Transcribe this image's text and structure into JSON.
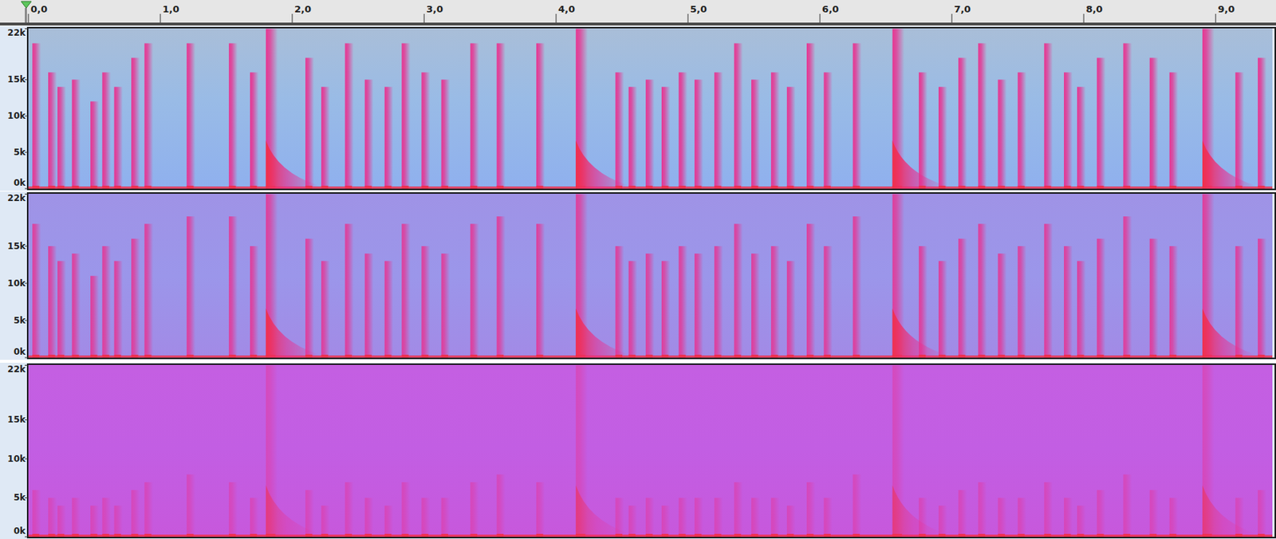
{
  "chart_data": [
    {
      "type": "spectrogram",
      "xlim": [
        0,
        9.43
      ],
      "xticks": [
        {
          "value": 0,
          "label": "0,0"
        },
        {
          "value": 1,
          "label": "1,0"
        },
        {
          "value": 2,
          "label": "2,0"
        },
        {
          "value": 3,
          "label": "3,0"
        },
        {
          "value": 4,
          "label": "4,0"
        },
        {
          "value": 5,
          "label": "5,0"
        },
        {
          "value": 6,
          "label": "6,0"
        },
        {
          "value": 7,
          "label": "7,0"
        },
        {
          "value": 8,
          "label": "8,0"
        },
        {
          "value": 9,
          "label": "9,0"
        }
      ],
      "ylim": [
        0,
        22050
      ],
      "yticks": [
        {
          "value": 0,
          "label": "0k"
        },
        {
          "value": 5000,
          "label": "5k"
        },
        {
          "value": 10000,
          "label": "10k"
        },
        {
          "value": 15000,
          "label": "15k"
        },
        {
          "value": 22000,
          "label": "22k"
        }
      ],
      "x": [
        0.03,
        0.15,
        0.22,
        0.33,
        0.47,
        0.56,
        0.65,
        0.78,
        0.88,
        1.2,
        1.52,
        1.68,
        1.8,
        2.1,
        2.22,
        2.4,
        2.55,
        2.7,
        2.83,
        2.98,
        3.13,
        3.35,
        3.55,
        3.85,
        4.15,
        4.45,
        4.55,
        4.68,
        4.8,
        4.93,
        5.05,
        5.2,
        5.35,
        5.48,
        5.63,
        5.75,
        5.9,
        6.03,
        6.25,
        6.55,
        6.75,
        6.9,
        7.05,
        7.2,
        7.35,
        7.5,
        7.7,
        7.85,
        7.95,
        8.1,
        8.3,
        8.5,
        8.65,
        8.9,
        9.15,
        9.32
      ],
      "values": [
        20000,
        16000,
        14000,
        15000,
        12000,
        16000,
        14000,
        18000,
        20000,
        20000,
        20000,
        16000,
        22000,
        18000,
        14000,
        20000,
        15000,
        14000,
        20000,
        16000,
        15000,
        20000,
        20000,
        20000,
        22000,
        16000,
        14000,
        15000,
        14000,
        16000,
        15000,
        16000,
        20000,
        15000,
        16000,
        14000,
        20000,
        16000,
        20000,
        22000,
        16000,
        14000,
        18000,
        20000,
        15000,
        16000,
        20000,
        16000,
        14000,
        18000,
        20000,
        18000,
        16000,
        22000,
        16000,
        18000
      ]
    },
    {
      "type": "spectrogram",
      "xlim": [
        0,
        9.43
      ],
      "ylim": [
        0,
        22050
      ],
      "yticks": [
        {
          "value": 0,
          "label": "0k"
        },
        {
          "value": 5000,
          "label": "5k"
        },
        {
          "value": 10000,
          "label": "10k"
        },
        {
          "value": 15000,
          "label": "15k"
        },
        {
          "value": 22000,
          "label": "22k"
        }
      ],
      "x": [
        0.03,
        0.15,
        0.22,
        0.33,
        0.47,
        0.56,
        0.65,
        0.78,
        0.88,
        1.2,
        1.52,
        1.68,
        1.8,
        2.1,
        2.22,
        2.4,
        2.55,
        2.7,
        2.83,
        2.98,
        3.13,
        3.35,
        3.55,
        3.85,
        4.15,
        4.45,
        4.55,
        4.68,
        4.8,
        4.93,
        5.05,
        5.2,
        5.35,
        5.48,
        5.63,
        5.75,
        5.9,
        6.03,
        6.25,
        6.55,
        6.75,
        6.9,
        7.05,
        7.2,
        7.35,
        7.5,
        7.7,
        7.85,
        7.95,
        8.1,
        8.3,
        8.5,
        8.65,
        8.9,
        9.15,
        9.32
      ],
      "values": [
        18000,
        15000,
        13000,
        14000,
        11000,
        15000,
        13000,
        16000,
        18000,
        19000,
        19000,
        15000,
        22000,
        16000,
        13000,
        18000,
        14000,
        13000,
        18000,
        15000,
        14000,
        18000,
        19000,
        18000,
        22000,
        15000,
        13000,
        14000,
        13000,
        15000,
        14000,
        15000,
        18000,
        14000,
        15000,
        13000,
        18000,
        15000,
        19000,
        22000,
        15000,
        13000,
        16000,
        18000,
        14000,
        15000,
        18000,
        15000,
        13000,
        16000,
        19000,
        16000,
        15000,
        22000,
        15000,
        16000
      ]
    },
    {
      "type": "spectrogram",
      "xlim": [
        0,
        9.43
      ],
      "ylim": [
        0,
        22050
      ],
      "yticks": [
        {
          "value": 0,
          "label": "0k"
        },
        {
          "value": 5000,
          "label": "5k"
        },
        {
          "value": 10000,
          "label": "10k"
        },
        {
          "value": 15000,
          "label": "15k"
        },
        {
          "value": 22000,
          "label": "22k"
        }
      ],
      "x": [
        0.03,
        0.15,
        0.22,
        0.33,
        0.47,
        0.56,
        0.65,
        0.78,
        0.88,
        1.2,
        1.52,
        1.68,
        1.8,
        2.1,
        2.22,
        2.4,
        2.55,
        2.7,
        2.83,
        2.98,
        3.13,
        3.35,
        3.55,
        3.85,
        4.15,
        4.45,
        4.55,
        4.68,
        4.8,
        4.93,
        5.05,
        5.2,
        5.35,
        5.48,
        5.63,
        5.75,
        5.9,
        6.03,
        6.25,
        6.55,
        6.75,
        6.9,
        7.05,
        7.2,
        7.35,
        7.5,
        7.7,
        7.85,
        7.95,
        8.1,
        8.3,
        8.5,
        8.65,
        8.9,
        9.15,
        9.32
      ],
      "values": [
        6000,
        5000,
        4000,
        5000,
        4000,
        5000,
        4000,
        6000,
        7000,
        8000,
        7000,
        5000,
        22000,
        6000,
        4000,
        7000,
        5000,
        4000,
        7000,
        5000,
        5000,
        7000,
        8000,
        7000,
        22000,
        5000,
        4000,
        5000,
        4000,
        5000,
        5000,
        5000,
        7000,
        5000,
        5000,
        4000,
        7000,
        5000,
        8000,
        22000,
        5000,
        4000,
        6000,
        7000,
        5000,
        5000,
        7000,
        5000,
        4000,
        6000,
        8000,
        6000,
        5000,
        22000,
        5000,
        6000
      ]
    }
  ]
}
